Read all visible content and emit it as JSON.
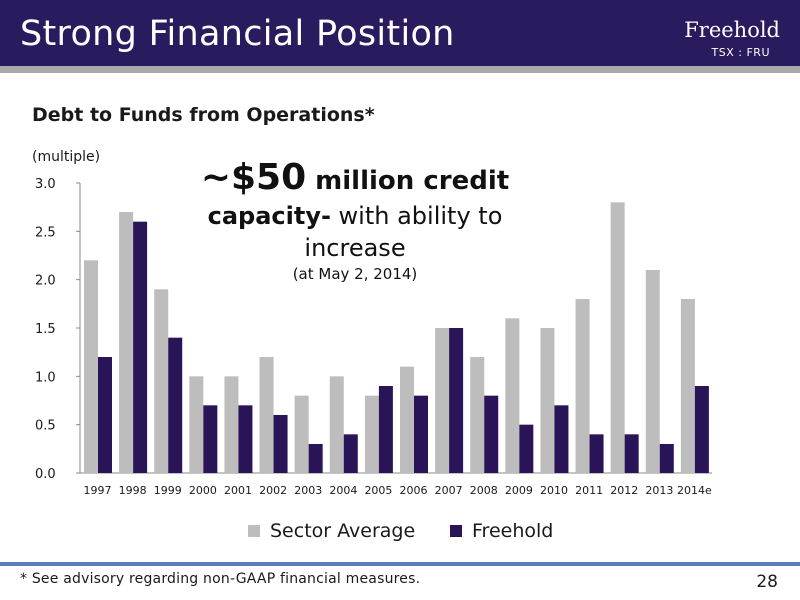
{
  "slide": {
    "title": "Strong Financial Position",
    "logo_name": "Freehold",
    "logo_ticker": "TSX : FRU",
    "footnote": "* See advisory regarding non-GAAP financial measures.",
    "page_number": "28"
  },
  "callout": {
    "line1_big": "~$50",
    "line1_rest": " million credit",
    "line2_bold": "capacity-",
    "line2_rest": " with ability to",
    "line3": "increase",
    "line4": "(at May 2, 2014)"
  },
  "colors": {
    "header_bg": "#2a1b5e",
    "sector_average": "#bdbdbd",
    "freehold": "#2a1458",
    "footer_line": "#5a7fc2"
  },
  "chart_data": {
    "type": "bar",
    "title": "Debt to Funds from Operations*",
    "units_label": "(multiple)",
    "categories": [
      "1997",
      "1998",
      "1999",
      "2000",
      "2001",
      "2002",
      "2003",
      "2004",
      "2005",
      "2006",
      "2007",
      "2008",
      "2009",
      "2010",
      "2011",
      "2012",
      "2013",
      "2014e"
    ],
    "series": [
      {
        "name": "Sector Average",
        "color": "#bdbdbd",
        "values": [
          2.2,
          2.7,
          1.9,
          1.0,
          1.0,
          1.2,
          0.8,
          1.0,
          0.8,
          1.1,
          1.5,
          1.2,
          1.6,
          1.5,
          1.8,
          2.8,
          2.1,
          1.8
        ]
      },
      {
        "name": "Freehold",
        "color": "#2a1458",
        "values": [
          1.2,
          2.6,
          1.4,
          0.7,
          0.7,
          0.6,
          0.3,
          0.4,
          0.9,
          0.8,
          1.5,
          0.8,
          0.5,
          0.7,
          0.4,
          0.4,
          0.3,
          0.9
        ]
      }
    ],
    "ylim": [
      0,
      3.0
    ],
    "yticks": [
      "0.0",
      "0.5",
      "1.0",
      "1.5",
      "2.0",
      "2.5",
      "3.0"
    ],
    "legend_position": "bottom",
    "grid": false
  }
}
